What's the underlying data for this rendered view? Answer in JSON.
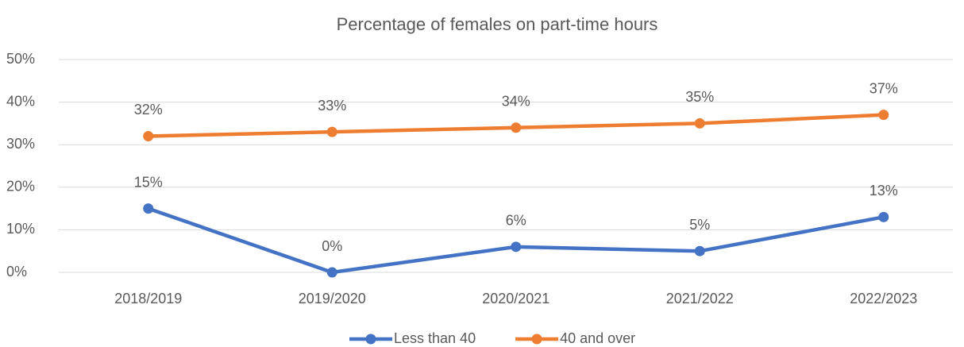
{
  "chart_data": {
    "type": "line",
    "title": "Percentage of females on part-time hours",
    "categories": [
      "2018/2019",
      "2019/2020",
      "2020/2021",
      "2021/2022",
      "2022/2023"
    ],
    "series": [
      {
        "name": "Less than 40",
        "color": "#4472c4",
        "values": [
          15,
          0,
          6,
          5,
          13
        ],
        "value_labels": [
          "15%",
          "0%",
          "6%",
          "5%",
          "13%"
        ]
      },
      {
        "name": "40 and over",
        "color": "#ed7d31",
        "values": [
          32,
          33,
          34,
          35,
          37
        ],
        "value_labels": [
          "32%",
          "33%",
          "34%",
          "35%",
          "37%"
        ]
      }
    ],
    "ylim": [
      0,
      50
    ],
    "yticks": [
      {
        "value": 0,
        "label": "0%"
      },
      {
        "value": 10,
        "label": "10%"
      },
      {
        "value": 20,
        "label": "20%"
      },
      {
        "value": 30,
        "label": "30%"
      },
      {
        "value": 40,
        "label": "40%"
      },
      {
        "value": 50,
        "label": "50%"
      }
    ],
    "grid": true,
    "legend": "bottom"
  }
}
